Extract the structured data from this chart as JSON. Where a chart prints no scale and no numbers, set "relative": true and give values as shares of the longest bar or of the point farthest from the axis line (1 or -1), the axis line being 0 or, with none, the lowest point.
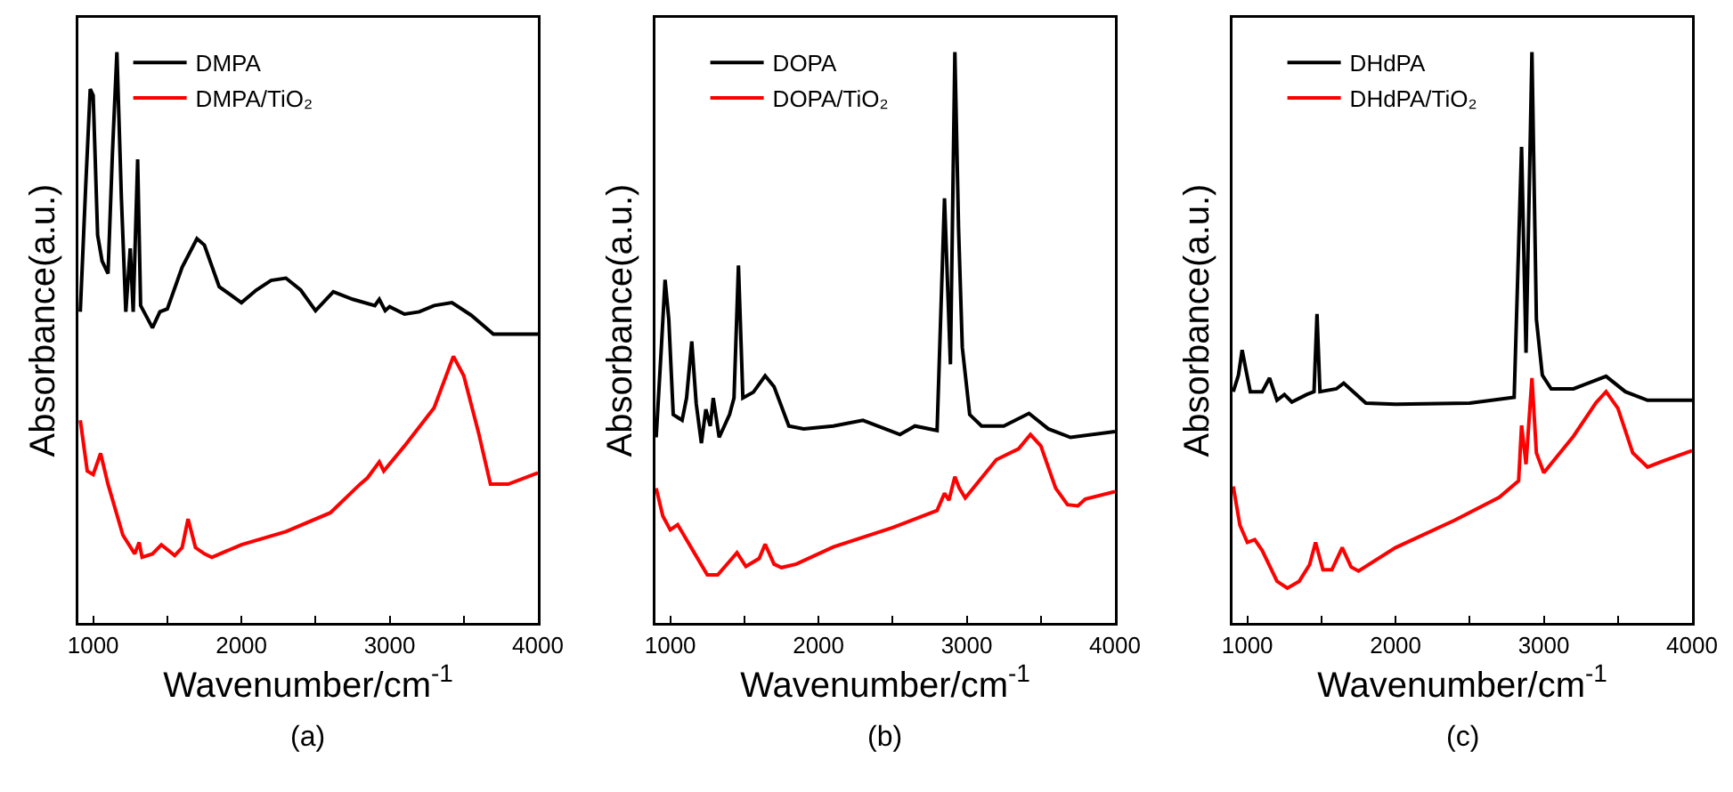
{
  "chart_data": [
    {
      "type": "line",
      "xlabel": "Wavenumber/cm$^{-1}$",
      "ylabel": "Absorbance(a.u.)",
      "annotations": [
        "(a)"
      ],
      "relative": true,
      "legend": "top left",
      "grid": false,
      "marker": "none",
      "line_style": "solid",
      "xlim": [
        900,
        4000
      ],
      "xticks": [
        1000,
        {
          "value": 1500,
          "label": null
        },
        2000,
        {
          "value": 2500,
          "label": null
        },
        3000,
        {
          "value": 3500,
          "label": null
        },
        4000
      ],
      "series": [
        {
          "name": "DMPA",
          "color": "#000000",
          "x": [
            913,
            950,
            980,
            1000,
            1030,
            1060,
            1100,
            1130,
            1160,
            1190,
            1220,
            1250,
            1270,
            1300,
            1320,
            1400,
            1450,
            1500,
            1600,
            1700,
            1750,
            1850,
            2000,
            2100,
            2200,
            2300,
            2400,
            2500,
            2620,
            2750,
            2900,
            2930,
            2970,
            3000,
            3100,
            3200,
            3300,
            3420,
            3550,
            3700,
            4000
          ],
          "values": [
            0.545,
            0.768,
            0.935,
            0.924,
            0.679,
            0.634,
            0.612,
            0.824,
            1.0,
            0.746,
            0.545,
            0.656,
            0.545,
            0.812,
            0.556,
            0.517,
            0.545,
            0.55,
            0.623,
            0.673,
            0.662,
            0.589,
            0.561,
            0.583,
            0.6,
            0.604,
            0.583,
            0.547,
            0.58,
            0.567,
            0.556,
            0.567,
            0.547,
            0.554,
            0.541,
            0.545,
            0.556,
            0.561,
            0.539,
            0.506,
            0.506
          ]
        },
        {
          "name": "DMPA/TiO₂",
          "color": "#ff0000",
          "x": [
            913,
            960,
            1000,
            1050,
            1100,
            1200,
            1280,
            1310,
            1330,
            1400,
            1460,
            1550,
            1600,
            1640,
            1690,
            1750,
            1800,
            2000,
            2300,
            2600,
            2800,
            2850,
            2930,
            2960,
            3100,
            3300,
            3430,
            3500,
            3600,
            3680,
            3800,
            4000
          ],
          "values": [
            0.355,
            0.266,
            0.26,
            0.297,
            0.243,
            0.154,
            0.121,
            0.141,
            0.115,
            0.121,
            0.137,
            0.118,
            0.132,
            0.182,
            0.132,
            0.121,
            0.115,
            0.137,
            0.16,
            0.193,
            0.243,
            0.254,
            0.282,
            0.266,
            0.31,
            0.377,
            0.467,
            0.433,
            0.333,
            0.243,
            0.243,
            0.263
          ]
        }
      ]
    },
    {
      "type": "line",
      "xlabel": "Wavenumber/cm$^{-1}$",
      "ylabel": "Absorbance(a.u.)",
      "annotations": [
        "(b)"
      ],
      "relative": true,
      "legend": "top left",
      "grid": false,
      "marker": "none",
      "line_style": "solid",
      "xlim": [
        900,
        4000
      ],
      "xticks": [
        1000,
        {
          "value": 1500,
          "label": null
        },
        2000,
        {
          "value": 2500,
          "label": null
        },
        3000,
        {
          "value": 3500,
          "label": null
        },
        4000
      ],
      "series": [
        {
          "name": "DOPA",
          "color": "#000000",
          "x": [
            905,
            940,
            965,
            990,
            1020,
            1080,
            1110,
            1145,
            1175,
            1210,
            1240,
            1270,
            1290,
            1330,
            1400,
            1430,
            1460,
            1490,
            1560,
            1640,
            1700,
            1800,
            1900,
            2100,
            2300,
            2550,
            2650,
            2800,
            2850,
            2890,
            2920,
            2945,
            2970,
            3020,
            3100,
            3250,
            3420,
            3550,
            3700,
            4000
          ],
          "values": [
            0.325,
            0.483,
            0.601,
            0.532,
            0.365,
            0.355,
            0.394,
            0.493,
            0.384,
            0.315,
            0.374,
            0.345,
            0.394,
            0.325,
            0.365,
            0.394,
            0.626,
            0.394,
            0.404,
            0.433,
            0.414,
            0.345,
            0.34,
            0.345,
            0.355,
            0.33,
            0.345,
            0.337,
            0.744,
            0.453,
            1.0,
            0.69,
            0.483,
            0.365,
            0.345,
            0.345,
            0.367,
            0.34,
            0.325,
            0.335
          ]
        },
        {
          "name": "DOPA/TiO₂",
          "color": "#ff0000",
          "x": [
            905,
            950,
            1000,
            1050,
            1150,
            1250,
            1320,
            1400,
            1450,
            1510,
            1600,
            1640,
            1700,
            1750,
            1850,
            2100,
            2500,
            2800,
            2850,
            2880,
            2920,
            2950,
            2990,
            3200,
            3350,
            3430,
            3500,
            3600,
            3680,
            3750,
            3800,
            4000
          ],
          "values": [
            0.236,
            0.187,
            0.163,
            0.172,
            0.128,
            0.084,
            0.084,
            0.108,
            0.123,
            0.099,
            0.113,
            0.138,
            0.103,
            0.097,
            0.103,
            0.133,
            0.167,
            0.197,
            0.227,
            0.215,
            0.256,
            0.236,
            0.219,
            0.286,
            0.305,
            0.33,
            0.31,
            0.236,
            0.207,
            0.205,
            0.217,
            0.23
          ]
        }
      ]
    },
    {
      "type": "line",
      "xlabel": "Wavenumber/cm$^{-1}$",
      "ylabel": "Absorbance(a.u.)",
      "annotations": [
        "(c)"
      ],
      "relative": true,
      "legend": "top left",
      "grid": false,
      "marker": "none",
      "line_style": "solid",
      "xlim": [
        900,
        4000
      ],
      "xticks": [
        1000,
        {
          "value": 1500,
          "label": null
        },
        2000,
        {
          "value": 2500,
          "label": null
        },
        3000,
        {
          "value": 3500,
          "label": null
        },
        4000
      ],
      "series": [
        {
          "name": "DHdPA",
          "color": "#000000",
          "x": [
            905,
            940,
            965,
            990,
            1020,
            1100,
            1150,
            1200,
            1250,
            1300,
            1400,
            1450,
            1470,
            1490,
            1600,
            1650,
            1800,
            2000,
            2500,
            2800,
            2850,
            2880,
            2920,
            2950,
            2990,
            3050,
            3200,
            3420,
            3550,
            3700,
            4000
          ],
          "values": [
            0.405,
            0.434,
            0.478,
            0.444,
            0.405,
            0.405,
            0.429,
            0.39,
            0.4,
            0.387,
            0.4,
            0.405,
            0.541,
            0.405,
            0.41,
            0.42,
            0.385,
            0.383,
            0.385,
            0.395,
            0.834,
            0.473,
            1.0,
            0.532,
            0.434,
            0.41,
            0.41,
            0.432,
            0.405,
            0.39,
            0.39
          ]
        },
        {
          "name": "DHdPA/TiO₂",
          "color": "#ff0000",
          "x": [
            905,
            950,
            1000,
            1050,
            1100,
            1200,
            1270,
            1350,
            1420,
            1460,
            1510,
            1570,
            1640,
            1700,
            1750,
            2000,
            2400,
            2700,
            2830,
            2850,
            2880,
            2920,
            2950,
            3000,
            3200,
            3350,
            3420,
            3500,
            3600,
            3700,
            3800,
            4000
          ],
          "values": [
            0.239,
            0.171,
            0.141,
            0.146,
            0.127,
            0.073,
            0.061,
            0.073,
            0.102,
            0.141,
            0.093,
            0.093,
            0.132,
            0.098,
            0.091,
            0.132,
            0.18,
            0.22,
            0.249,
            0.346,
            0.278,
            0.429,
            0.298,
            0.263,
            0.327,
            0.385,
            0.405,
            0.376,
            0.298,
            0.273,
            0.283,
            0.302
          ]
        }
      ]
    }
  ]
}
